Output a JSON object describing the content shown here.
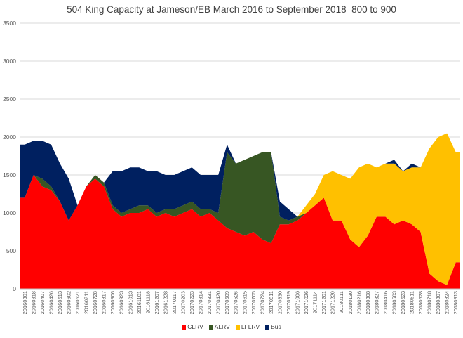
{
  "chart_data": {
    "type": "area",
    "title": "504 King Capacity at Jameson/EB March 2016 to September 2018  800 to 900",
    "xlabel": "",
    "ylabel": "",
    "ylim": [
      0,
      3500
    ],
    "yticks": [
      0,
      500,
      1000,
      1500,
      2000,
      2500,
      3000,
      3500
    ],
    "grid": true,
    "legend_position": "bottom",
    "stacked": true,
    "categories": [
      "20160301",
      "20160318",
      "20160407",
      "20160426",
      "20160513",
      "20160602",
      "20160621",
      "20160711",
      "20160728",
      "20160817",
      "20160906",
      "20160923",
      "20161013",
      "20161101",
      "20161118",
      "20161207",
      "20161228",
      "20170117",
      "20170203",
      "20170223",
      "20170314",
      "20170331",
      "20170420",
      "20170509",
      "20170526",
      "20170615",
      "20170705",
      "20170724",
      "20170811",
      "20170830",
      "20170919",
      "20171006",
      "20171026",
      "20171114",
      "20171201",
      "20171220",
      "20180111",
      "20180130",
      "20180216",
      "20180308",
      "20180327",
      "20180416",
      "20180503",
      "20180523",
      "20180611",
      "20180628",
      "20180718",
      "20180807",
      "20180824",
      "20180913"
    ],
    "series": [
      {
        "name": "CLRV",
        "color": "#ff0000",
        "values": [
          1200,
          1500,
          1350,
          1300,
          1150,
          900,
          1100,
          1350,
          1450,
          1350,
          1050,
          950,
          1000,
          1000,
          1050,
          950,
          1000,
          950,
          1000,
          1050,
          950,
          1000,
          900,
          800,
          750,
          700,
          750,
          650,
          600,
          850,
          850,
          900,
          1000,
          1100,
          1200,
          900,
          900,
          650,
          550,
          700,
          950,
          950,
          850,
          900,
          850,
          750,
          200,
          100,
          50,
          350
        ]
      },
      {
        "name": "ALRV",
        "color": "#375623",
        "values": [
          0,
          0,
          100,
          50,
          0,
          0,
          0,
          0,
          50,
          50,
          50,
          50,
          50,
          100,
          50,
          50,
          50,
          100,
          100,
          100,
          100,
          50,
          100,
          1000,
          900,
          1000,
          1000,
          1150,
          1200,
          100,
          50,
          50,
          0,
          0,
          0,
          0,
          0,
          0,
          0,
          0,
          0,
          0,
          0,
          0,
          0,
          0,
          0,
          0,
          0,
          0
        ]
      },
      {
        "name": "LFLRV",
        "color": "#ffc000",
        "values": [
          0,
          0,
          0,
          0,
          0,
          0,
          0,
          0,
          0,
          0,
          0,
          0,
          0,
          0,
          0,
          0,
          0,
          0,
          0,
          0,
          0,
          0,
          0,
          0,
          0,
          0,
          0,
          0,
          0,
          0,
          0,
          0,
          100,
          150,
          300,
          650,
          600,
          800,
          1050,
          950,
          650,
          700,
          800,
          650,
          750,
          850,
          1650,
          1900,
          2000,
          1450
        ]
      },
      {
        "name": "Bus",
        "color": "#002060",
        "values": [
          700,
          450,
          500,
          550,
          500,
          550,
          0,
          0,
          0,
          0,
          450,
          550,
          550,
          500,
          450,
          550,
          450,
          450,
          450,
          450,
          450,
          450,
          500,
          100,
          0,
          0,
          0,
          0,
          0,
          200,
          150,
          0,
          0,
          0,
          0,
          0,
          0,
          0,
          0,
          0,
          0,
          0,
          50,
          0,
          50,
          0,
          0,
          0,
          0,
          0
        ]
      }
    ]
  }
}
